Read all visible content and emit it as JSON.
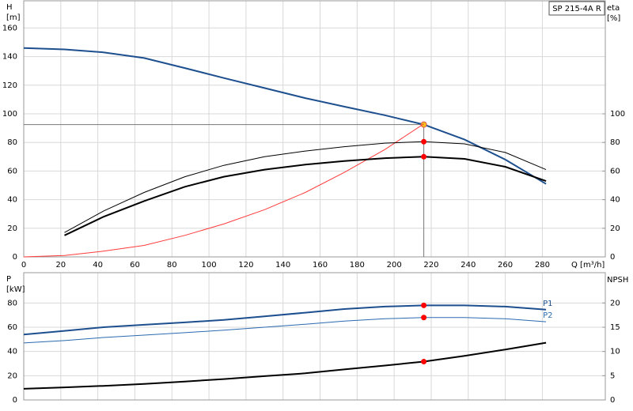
{
  "chart_data": [
    {
      "type": "line",
      "title": "SP 215-4A R",
      "xlabel": "Q [m³/h]",
      "ylabel": "H",
      "yunit": "[m]",
      "y2label": "eta",
      "y2unit": "[%]",
      "x": [
        0,
        22,
        43,
        65,
        87,
        108,
        130,
        152,
        173,
        195,
        216,
        238,
        260,
        282
      ],
      "xlim": [
        0,
        314
      ],
      "xticks": [
        0,
        20,
        40,
        60,
        80,
        100,
        120,
        140,
        160,
        180,
        200,
        220,
        240,
        260,
        280
      ],
      "ylim": [
        0,
        179
      ],
      "yticks": [
        0,
        20,
        40,
        60,
        80,
        100,
        120,
        140,
        160
      ],
      "y2lim": [
        0,
        179
      ],
      "y2ticks": [
        0,
        20,
        40,
        60,
        80,
        100
      ],
      "grid": true,
      "duty_index": 10,
      "crosshair_series": 0,
      "series": [
        {
          "color": "#1d4f8f",
          "linewidth": 2,
          "axis": "y",
          "marker": "#f5c518",
          "values": [
            146,
            145,
            143,
            139,
            132,
            125,
            118,
            111,
            105,
            99,
            92.5,
            82,
            68,
            51
          ]
        },
        {
          "color": "#ff3b3b",
          "linewidth": 1,
          "axis": "y",
          "values": [
            0,
            1,
            4,
            8,
            15,
            23,
            33,
            45,
            59,
            75,
            93,
            null,
            null,
            null
          ]
        },
        {
          "color": "#000000",
          "linewidth": 1,
          "axis": "y2",
          "marker": "#ff0000",
          "values": [
            null,
            17,
            32,
            45,
            56,
            64,
            70,
            74,
            77,
            79.5,
            80.5,
            79,
            73,
            61
          ]
        },
        {
          "color": "#000000",
          "linewidth": 2,
          "axis": "y2",
          "marker": "#ff0000",
          "values": [
            null,
            15,
            28,
            39,
            49,
            56,
            61,
            64.5,
            67,
            69,
            70,
            68.5,
            63,
            53
          ]
        }
      ]
    },
    {
      "type": "line",
      "ylabel": "P",
      "yunit": "[kW]",
      "y2label": "NPSH",
      "x": [
        0,
        22,
        43,
        65,
        87,
        108,
        130,
        152,
        173,
        195,
        216,
        238,
        260,
        282
      ],
      "xlim": [
        0,
        314
      ],
      "xticks": [
        0,
        20,
        40,
        60,
        80,
        100,
        120,
        140,
        160,
        180,
        200,
        220,
        240,
        260,
        280
      ],
      "xtick_labels": false,
      "ylim": [
        0,
        105
      ],
      "yticks": [
        0,
        20,
        40,
        60,
        80
      ],
      "y2lim": [
        0,
        26.25
      ],
      "y2ticks": [
        0,
        5,
        10,
        15,
        20
      ],
      "grid": true,
      "duty_index": 10,
      "series": [
        {
          "name": "P1",
          "color": "#1d4f8f",
          "linewidth": 2,
          "axis": "y",
          "marker": "#ff0000",
          "values": [
            54,
            57,
            60,
            62,
            64,
            66,
            69,
            72,
            75,
            77,
            78,
            78,
            77,
            74.5
          ]
        },
        {
          "name": "P2",
          "color": "#2a6ab0",
          "linewidth": 1,
          "axis": "y",
          "marker": "#ff0000",
          "values": [
            47,
            49,
            51.5,
            53.5,
            55.5,
            57.5,
            60,
            62.5,
            65,
            67,
            68,
            68,
            67,
            64.5
          ]
        },
        {
          "color": "#000000",
          "linewidth": 2,
          "axis": "y2",
          "marker": "#ff0000",
          "values": [
            2.3,
            2.6,
            2.9,
            3.3,
            3.8,
            4.3,
            4.9,
            5.5,
            6.3,
            7.1,
            7.9,
            9.1,
            10.4,
            11.8
          ]
        }
      ]
    }
  ]
}
